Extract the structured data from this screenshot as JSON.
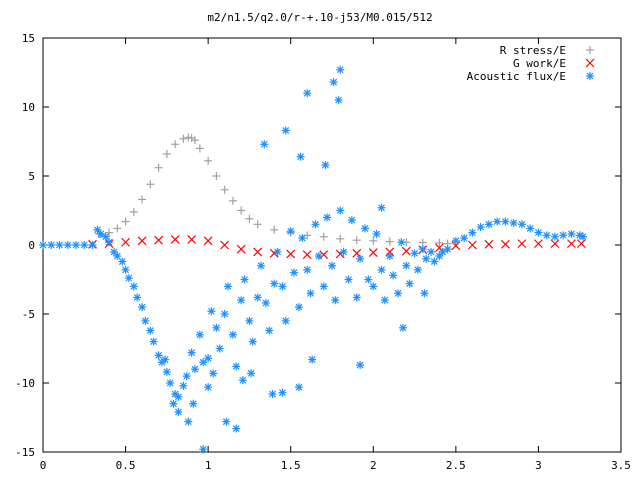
{
  "chart_data": {
    "type": "scatter",
    "title": "m2/n1.5/q2.0/r-+.10-j53/M0.015/512",
    "xlabel": "",
    "ylabel": "",
    "xlim": [
      0,
      3.5
    ],
    "ylim": [
      -15,
      15
    ],
    "xticks": [
      "0",
      "0.5",
      "1",
      "1.5",
      "2",
      "2.5",
      "3",
      "3.5"
    ],
    "yticks": [
      "-15",
      "-10",
      "-5",
      "0",
      "5",
      "10",
      "15"
    ],
    "grid": false,
    "legend_placement": "top-right",
    "series": [
      {
        "name": "R stress/E",
        "marker": "+",
        "color": "#a0a0a0",
        "x": [
          0.34,
          0.4,
          0.45,
          0.5,
          0.55,
          0.6,
          0.65,
          0.7,
          0.75,
          0.8,
          0.85,
          0.88,
          0.9,
          0.92,
          0.95,
          1.0,
          1.05,
          1.1,
          1.15,
          1.2,
          1.25,
          1.3,
          1.4,
          1.5,
          1.6,
          1.7,
          1.8,
          1.9,
          2.0,
          2.1,
          2.2,
          2.3,
          2.4,
          2.45
        ],
        "y": [
          0.8,
          0.9,
          1.2,
          1.7,
          2.4,
          3.3,
          4.4,
          5.6,
          6.6,
          7.3,
          7.7,
          7.8,
          7.75,
          7.6,
          7.0,
          6.1,
          5.0,
          4.0,
          3.2,
          2.5,
          1.9,
          1.5,
          1.1,
          0.9,
          0.7,
          0.6,
          0.45,
          0.35,
          0.3,
          0.25,
          0.2,
          0.18,
          0.15,
          0.1
        ]
      },
      {
        "name": "G work/E",
        "marker": "x",
        "color": "#ff0000",
        "x": [
          0.3,
          0.4,
          0.5,
          0.6,
          0.7,
          0.8,
          0.9,
          1.0,
          1.1,
          1.2,
          1.3,
          1.4,
          1.5,
          1.6,
          1.7,
          1.8,
          1.9,
          2.0,
          2.1,
          2.2,
          2.3,
          2.4,
          2.5,
          2.6,
          2.7,
          2.8,
          2.9,
          3.0,
          3.1,
          3.2,
          3.26
        ],
        "y": [
          0.05,
          0.1,
          0.2,
          0.3,
          0.35,
          0.4,
          0.4,
          0.3,
          0.0,
          -0.3,
          -0.5,
          -0.6,
          -0.65,
          -0.7,
          -0.7,
          -0.65,
          -0.6,
          -0.55,
          -0.5,
          -0.45,
          -0.35,
          -0.2,
          -0.05,
          0.0,
          0.05,
          0.05,
          0.1,
          0.1,
          0.1,
          0.1,
          0.1
        ]
      },
      {
        "name": "Acoustic flux/E",
        "marker": "*",
        "color": "#1e90ff",
        "x": [
          0.0,
          0.05,
          0.1,
          0.15,
          0.2,
          0.25,
          0.3,
          0.33,
          0.35,
          0.38,
          0.4,
          0.43,
          0.45,
          0.48,
          0.5,
          0.52,
          0.55,
          0.57,
          0.6,
          0.62,
          0.65,
          0.67,
          0.7,
          0.72,
          0.75,
          0.77,
          0.8,
          0.82,
          0.85,
          0.87,
          0.9,
          0.92,
          0.95,
          0.97,
          1.0,
          1.02,
          1.05,
          1.07,
          1.1,
          1.12,
          1.15,
          1.17,
          1.2,
          1.22,
          1.25,
          1.27,
          1.3,
          1.32,
          1.35,
          1.37,
          1.4,
          1.42,
          1.45,
          1.47,
          1.5,
          1.52,
          1.55,
          1.57,
          1.6,
          1.62,
          1.65,
          1.67,
          1.7,
          1.72,
          1.75,
          1.77,
          1.8,
          1.82,
          1.85,
          1.87,
          1.9,
          1.92,
          1.95,
          1.97,
          2.0,
          2.02,
          2.05,
          2.07,
          2.1,
          2.12,
          2.15,
          2.17,
          2.2,
          2.22,
          2.25,
          2.27,
          2.3,
          2.32,
          2.35,
          2.37,
          2.4,
          2.42,
          2.45,
          2.5,
          2.55,
          2.6,
          2.65,
          2.7,
          2.75,
          2.8,
          2.85,
          2.9,
          2.95,
          3.0,
          3.05,
          3.1,
          3.15,
          3.2,
          3.25,
          3.27,
          0.91,
          0.97,
          1.11,
          1.34,
          1.47,
          1.56,
          1.6,
          1.71,
          1.76,
          1.79,
          1.8,
          2.05,
          0.82,
          0.88,
          1.0,
          1.17,
          1.39,
          1.26,
          0.79,
          0.74,
          1.03,
          1.45,
          1.63,
          1.92,
          2.18,
          2.31,
          1.21,
          1.55
        ],
        "y": [
          0.0,
          0.0,
          0.0,
          0.0,
          0.0,
          0.0,
          0.0,
          1.1,
          0.8,
          0.6,
          0.2,
          -0.5,
          -0.8,
          -1.2,
          -1.8,
          -2.4,
          -3.0,
          -3.8,
          -4.5,
          -5.5,
          -6.2,
          -7.0,
          -8.0,
          -8.5,
          -9.2,
          -10.0,
          -10.8,
          -11.0,
          -10.2,
          -9.5,
          -7.8,
          -9.0,
          -6.5,
          -8.5,
          -8.2,
          -4.8,
          -6.0,
          -7.5,
          -5.0,
          -3.0,
          -6.5,
          -8.8,
          -4.0,
          -2.5,
          -5.5,
          -7.0,
          -3.8,
          -1.5,
          -4.2,
          -6.2,
          -2.8,
          -0.5,
          -3.0,
          -5.5,
          1.0,
          -2.0,
          -4.5,
          0.5,
          -1.8,
          -3.5,
          1.5,
          -0.8,
          -3.0,
          2.0,
          -1.5,
          -4.0,
          2.5,
          -0.5,
          -2.5,
          1.8,
          -3.8,
          -1.0,
          1.2,
          -2.5,
          -3.0,
          0.8,
          -1.8,
          -4.0,
          -0.8,
          -2.2,
          -3.5,
          0.2,
          -1.5,
          -2.8,
          -0.6,
          -1.8,
          -0.3,
          -1.0,
          -0.5,
          -1.2,
          -0.8,
          -0.5,
          -0.3,
          0.3,
          0.5,
          0.9,
          1.3,
          1.5,
          1.7,
          1.7,
          1.6,
          1.5,
          1.2,
          0.9,
          0.7,
          0.6,
          0.7,
          0.8,
          0.7,
          0.6,
          -11.5,
          -14.8,
          -12.8,
          7.3,
          8.3,
          6.4,
          11.0,
          5.8,
          11.8,
          10.5,
          12.7,
          2.7,
          -12.1,
          -12.8,
          -10.3,
          -13.3,
          -10.8,
          -9.3,
          -11.5,
          -8.3,
          -9.3,
          -10.7,
          -8.3,
          -8.7,
          -6.0,
          -3.5,
          -9.8,
          -10.3
        ]
      }
    ]
  }
}
